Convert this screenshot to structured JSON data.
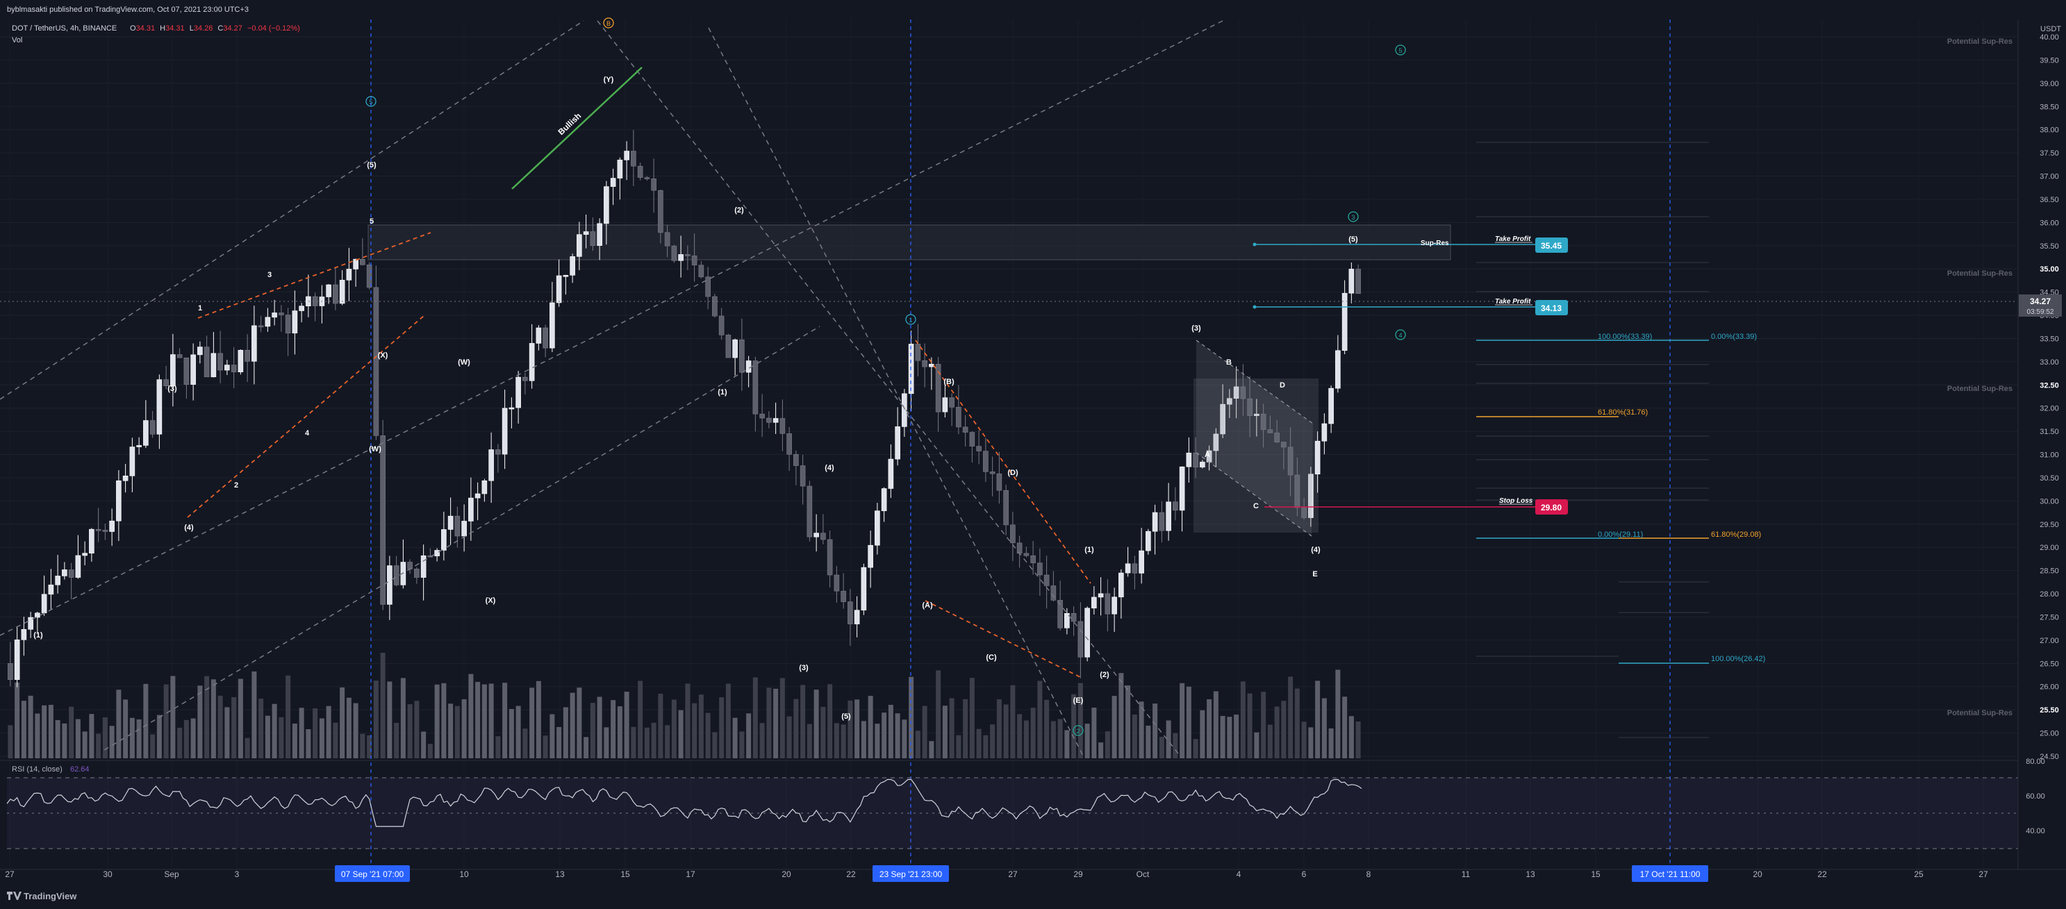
{
  "header": {
    "publisher": "byblmasakti published on TradingView.com, Oct 07, 2021 23:00 UTC+3",
    "symbol": "DOT / TetherUS, 4h, BINANCE",
    "ohlc": {
      "o_label": "O",
      "o": "34.31",
      "h_label": "H",
      "h": "34.31",
      "l_label": "L",
      "l": "34.26",
      "c_label": "C",
      "c": "34.27",
      "change": "−0.04 (−0.12%)"
    },
    "vol_label": "Vol"
  },
  "price_axis": {
    "currency": "USDT",
    "ticks": [
      "40.00",
      "39.50",
      "39.00",
      "38.50",
      "38.00",
      "37.50",
      "37.00",
      "36.50",
      "36.00",
      "35.50",
      "35.00",
      "34.50",
      "34.00",
      "33.50",
      "33.00",
      "32.50",
      "32.00",
      "31.50",
      "31.00",
      "30.50",
      "30.00",
      "29.50",
      "29.00",
      "28.50",
      "28.00",
      "27.50",
      "27.00",
      "26.50",
      "26.00",
      "25.50",
      "25.00",
      "24.50"
    ],
    "bold_ticks": [
      "35.00",
      "32.50",
      "25.50"
    ],
    "last_price": "34.27",
    "countdown": "03:59:52"
  },
  "time_axis": {
    "ticks": [
      "27",
      "30",
      "Sep",
      "3",
      "10",
      "13",
      "15",
      "17",
      "20",
      "22",
      "27",
      "29",
      "Oct",
      "4",
      "6",
      "8",
      "11",
      "13",
      "15",
      "20",
      "22",
      "25",
      "27"
    ],
    "highlight": [
      "07 Sep '21   07:00",
      "23 Sep '21   23:00",
      "17 Oct '21   11:00"
    ]
  },
  "rsi": {
    "label": "RSI (14, close)",
    "value": "62.64",
    "ticks": [
      "80.00",
      "60.00",
      "40.00"
    ]
  },
  "zones": {
    "sup_res": "Potential Sup-Res",
    "sup_res_small": "Sup-Res"
  },
  "trade_levels": {
    "take_profit_label": "Take Profit",
    "stop_loss_label": "Stop Loss",
    "tp1": "35.45",
    "tp2": "34.13",
    "sl": "29.80"
  },
  "fib": {
    "f1": "100.00%(33.39)",
    "f2": "0.00%(33.39)",
    "f3": "61.80%(31.76)",
    "f4": "0.00%(29.11)",
    "f5": "61.80%(29.08)",
    "f6": "100.00%(26.42)"
  },
  "annotations": {
    "bullish": "Bullish"
  },
  "watermark": "TradingView",
  "colors": {
    "background": "#131722",
    "candle": "#ffffff",
    "volume": "#787b86",
    "tp_blue": "#2fa8c8",
    "stop_red": "#d8174f",
    "fib_orange": "#f0a22d",
    "fib_cyan": "#2fa8c8",
    "green_line": "#4caf50",
    "channel": "#787b86",
    "highlight": "#2962ff"
  },
  "chart_data": {
    "type": "candlestick",
    "symbol": "DOT / TetherUS",
    "interval": "4h",
    "ylim": [
      24.5,
      40.0
    ],
    "x": [
      "27",
      "30",
      "Sep",
      "3",
      "10",
      "13",
      "15",
      "17",
      "20",
      "22",
      "27",
      "29",
      "Oct",
      "4",
      "6",
      "8"
    ],
    "close_path": [
      {
        "x": "27",
        "y": 26.5
      },
      {
        "x": "30",
        "y": 29.5
      },
      {
        "x": "Sep",
        "y": 32.8
      },
      {
        "x": "3",
        "y": 33.2
      },
      {
        "x": "07 Sep '21",
        "y": 35.0
      },
      {
        "x": "07 Sep '21",
        "y": 28.0
      },
      {
        "x": "10",
        "y": 29.5
      },
      {
        "x": "13",
        "y": 34.5
      },
      {
        "x": "15",
        "y": 37.3
      },
      {
        "x": "17",
        "y": 35.0
      },
      {
        "x": "20",
        "y": 31.0
      },
      {
        "x": "22",
        "y": 27.2
      },
      {
        "x": "23 Sep '21",
        "y": 33.3
      },
      {
        "x": "27",
        "y": 29.5
      },
      {
        "x": "29",
        "y": 27.0
      },
      {
        "x": "Oct",
        "y": 29.0
      },
      {
        "x": "4",
        "y": 32.5
      },
      {
        "x": "6",
        "y": 30.0
      },
      {
        "x": "8",
        "y": 35.0
      },
      {
        "x": "8",
        "y": 34.27
      }
    ],
    "last_close": 34.27,
    "rsi_last": 62.64
  }
}
